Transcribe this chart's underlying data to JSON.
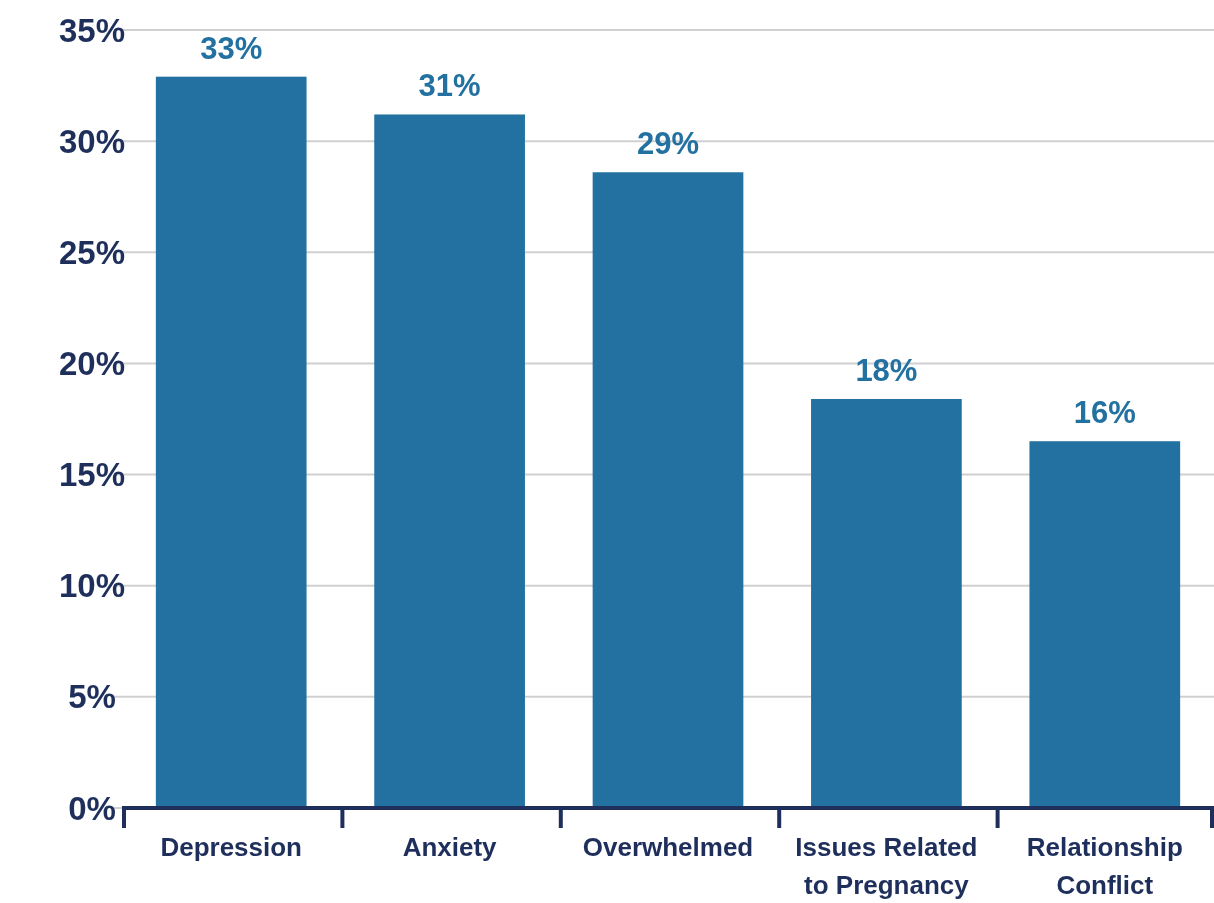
{
  "chart_data": {
    "type": "bar",
    "categories": [
      "Depression",
      "Anxiety",
      "Overwhelmed",
      "Issues Related to Pregnancy",
      "Relationship Conflict"
    ],
    "values": [
      32.9,
      31.2,
      28.6,
      18.4,
      16.5
    ],
    "value_labels": [
      "33%",
      "31%",
      "29%",
      "18%",
      "16%"
    ],
    "color": "#2271a0",
    "ylim": [
      0,
      35
    ],
    "yticks": [
      {
        "value": 0,
        "label": "0%"
      },
      {
        "value": 5,
        "label": "5%"
      },
      {
        "value": 10,
        "label": "10%"
      },
      {
        "value": 15,
        "label": "15%"
      },
      {
        "value": 20,
        "label": "20%"
      },
      {
        "value": 25,
        "label": "25%"
      },
      {
        "value": 30,
        "label": "30%"
      },
      {
        "value": 35,
        "label": "35%"
      }
    ],
    "grid": "y"
  }
}
